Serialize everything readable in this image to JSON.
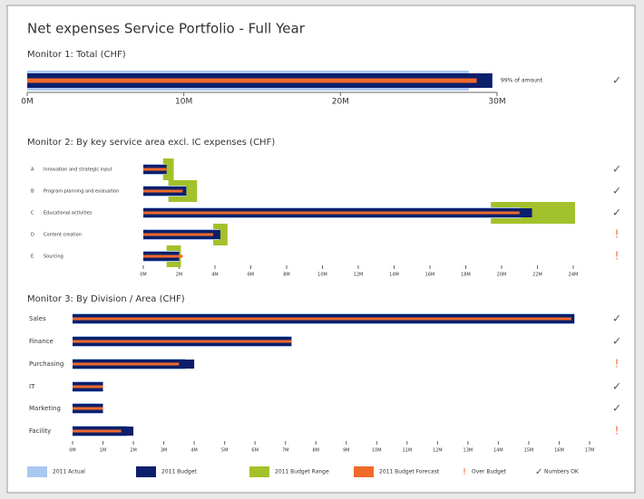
{
  "title": "Net expenses Service Portfolio - Full Year",
  "chart_data": [
    {
      "type": "bullet",
      "title": "Monitor 1: Total (CHF)",
      "annotation": "99% of amount",
      "codes": [
        null
      ],
      "categories": [
        null
      ],
      "actual": [
        28.2
      ],
      "budget": [
        29.7
      ],
      "range_low": [
        null
      ],
      "range_high": [
        null
      ],
      "forecast": [
        28.7
      ],
      "status": [
        "✓"
      ],
      "xlim": [
        0,
        30
      ],
      "xticks": [
        {
          "value": 0,
          "label": "0M"
        },
        {
          "value": 10,
          "label": "10M"
        },
        {
          "value": 20,
          "label": "20M"
        },
        {
          "value": 30,
          "label": "30M"
        }
      ]
    },
    {
      "type": "bullet",
      "title": "Monitor 2: By key service area excl. IC expenses (CHF)",
      "codes": [
        "A",
        "B",
        "C",
        "D",
        "E"
      ],
      "categories": [
        "Innovation and strategic input",
        "Program planning and evaluation",
        "Educational activities",
        "Content creation",
        "Sourcing"
      ],
      "actual": [
        1.2,
        2.4,
        21.1,
        4.2,
        2.0
      ],
      "budget": [
        1.3,
        2.4,
        21.7,
        4.3,
        2.0
      ],
      "range_low": [
        1.1,
        1.4,
        19.4,
        3.9,
        1.3
      ],
      "range_high": [
        1.7,
        3.0,
        24.1,
        4.7,
        2.1
      ],
      "forecast": [
        1.3,
        2.2,
        21.0,
        3.9,
        2.2
      ],
      "status": [
        "✓",
        "✓",
        "✓",
        "!",
        "!"
      ],
      "xlim": [
        0,
        24
      ],
      "xticks": [
        {
          "value": 0,
          "label": "0M"
        },
        {
          "value": 2,
          "label": "2M"
        },
        {
          "value": 4,
          "label": "4M"
        },
        {
          "value": 6,
          "label": "6M"
        },
        {
          "value": 8,
          "label": "8M"
        },
        {
          "value": 10,
          "label": "10M"
        },
        {
          "value": 12,
          "label": "12M"
        },
        {
          "value": 14,
          "label": "14M"
        },
        {
          "value": 16,
          "label": "16M"
        },
        {
          "value": 18,
          "label": "18M"
        },
        {
          "value": 20,
          "label": "20M"
        },
        {
          "value": 22,
          "label": "22M"
        },
        {
          "value": 24,
          "label": "24M"
        }
      ]
    },
    {
      "type": "bullet",
      "title": "Monitor 3: By Division / Area (CHF)",
      "codes": [
        null,
        null,
        null,
        null,
        null,
        null
      ],
      "categories": [
        "Sales",
        "Finance",
        "Purchasing",
        "IT",
        "Marketing",
        "Facility"
      ],
      "actual": [
        16.5,
        7.2,
        3.7,
        1.0,
        1.0,
        1.8
      ],
      "budget": [
        16.5,
        7.2,
        4.0,
        1.0,
        1.0,
        2.0
      ],
      "range_low": [
        null,
        null,
        null,
        null,
        null,
        null
      ],
      "range_high": [
        null,
        null,
        null,
        null,
        null,
        null
      ],
      "forecast": [
        16.4,
        7.2,
        3.5,
        1.0,
        1.0,
        1.6
      ],
      "status": [
        "✓",
        "✓",
        "!",
        "✓",
        "✓",
        "!"
      ],
      "xlim": [
        0,
        17
      ],
      "xticks": [
        {
          "value": 0,
          "label": "0M"
        },
        {
          "value": 1,
          "label": "1M"
        },
        {
          "value": 2,
          "label": "2M"
        },
        {
          "value": 3,
          "label": "3M"
        },
        {
          "value": 4,
          "label": "4M"
        },
        {
          "value": 5,
          "label": "5M"
        },
        {
          "value": 6,
          "label": "6M"
        },
        {
          "value": 7,
          "label": "7M"
        },
        {
          "value": 8,
          "label": "8M"
        },
        {
          "value": 9,
          "label": "9M"
        },
        {
          "value": 10,
          "label": "10M"
        },
        {
          "value": 11,
          "label": "11M"
        },
        {
          "value": 12,
          "label": "12M"
        },
        {
          "value": 13,
          "label": "13M"
        },
        {
          "value": 14,
          "label": "14M"
        },
        {
          "value": 15,
          "label": "15M"
        },
        {
          "value": 16,
          "label": "16M"
        },
        {
          "value": 17,
          "label": "17M"
        }
      ]
    }
  ],
  "legend": [
    {
      "name": "2011 Actual",
      "color": "#a9c8ef",
      "symbol": null
    },
    {
      "name": "2011 Budget",
      "color": "#0c1f6b",
      "symbol": null
    },
    {
      "name": "2011 Budget Range",
      "color": "#a3c12a",
      "symbol": null
    },
    {
      "name": "2011 Budget Forecast",
      "color": "#f06a2a",
      "symbol": null
    },
    {
      "name": "Over Budget",
      "color": "#f06a2a",
      "symbol": "!"
    },
    {
      "name": "Numbers OK",
      "color": "#555555",
      "symbol": "✓"
    }
  ]
}
